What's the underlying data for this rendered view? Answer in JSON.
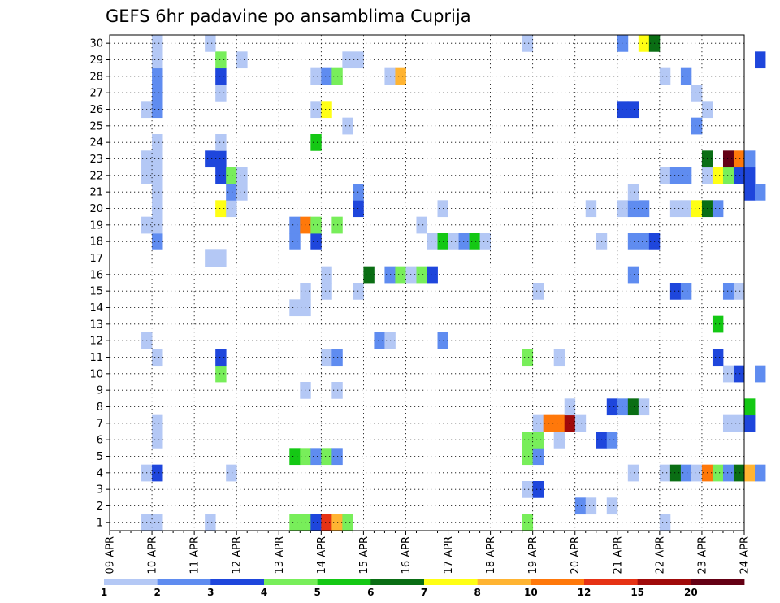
{
  "chart_data": {
    "type": "heatmap",
    "title": "GEFS 6hr padavine po ansamblima Cuprija",
    "x_tick_labels": [
      "09 APR",
      "10 APR",
      "11 APR",
      "12 APR",
      "13 APR",
      "14 APR",
      "15 APR",
      "16 APR",
      "17 APR",
      "18 APR",
      "19 APR",
      "20 APR",
      "21 APR",
      "22 APR",
      "23 APR",
      "24 APR"
    ],
    "y_tick_labels": [
      "1",
      "2",
      "3",
      "4",
      "5",
      "6",
      "7",
      "8",
      "9",
      "10",
      "11",
      "12",
      "13",
      "14",
      "15",
      "16",
      "17",
      "18",
      "19",
      "20",
      "21",
      "22",
      "23",
      "24",
      "25",
      "26",
      "27",
      "28",
      "29",
      "30"
    ],
    "time_step_hours": 6,
    "ylim": [
      0.5,
      30.5
    ],
    "grid": true,
    "colorbar": {
      "levels": [
        "1",
        "2",
        "3",
        "4",
        "5",
        "6",
        "7",
        "8",
        "10",
        "12",
        "15",
        "20"
      ],
      "colors": [
        "#b4c8f5",
        "#5f8cf0",
        "#1e46dc",
        "#78ee5a",
        "#14c814",
        "#0a6e14",
        "#ffff14",
        "#ffb432",
        "#ff780a",
        "#e63214",
        "#a00a0a",
        "#640014"
      ]
    },
    "cells": [
      {
        "m": 1,
        "s": [
          [
            3,
            "#b4c8f5"
          ],
          [
            4,
            "#b4c8f5"
          ],
          [
            9,
            "#b4c8f5"
          ],
          [
            17,
            "#78ee5a"
          ],
          [
            18,
            "#78ee5a"
          ],
          [
            19,
            "#1e46dc"
          ],
          [
            20,
            "#e63214"
          ],
          [
            21,
            "#ffb432"
          ],
          [
            22,
            "#78ee5a"
          ],
          [
            39,
            "#78ee5a"
          ],
          [
            52,
            "#b4c8f5"
          ]
        ]
      },
      {
        "m": 2,
        "s": [
          [
            44,
            "#5f8cf0"
          ],
          [
            45,
            "#b4c8f5"
          ],
          [
            47,
            "#b4c8f5"
          ]
        ]
      },
      {
        "m": 3,
        "s": [
          [
            39,
            "#b4c8f5"
          ],
          [
            40,
            "#1e46dc"
          ]
        ]
      },
      {
        "m": 4,
        "s": [
          [
            3,
            "#b4c8f5"
          ],
          [
            4,
            "#1e46dc"
          ],
          [
            11,
            "#b4c8f5"
          ],
          [
            49,
            "#b4c8f5"
          ],
          [
            52,
            "#b4c8f5"
          ],
          [
            53,
            "#0a6e14"
          ],
          [
            54,
            "#5f8cf0"
          ],
          [
            55,
            "#b4c8f5"
          ],
          [
            56,
            "#ff780a"
          ],
          [
            57,
            "#78ee5a"
          ],
          [
            58,
            "#5f8cf0"
          ],
          [
            59,
            "#0a6e14"
          ],
          [
            60,
            "#ffb432"
          ],
          [
            61,
            "#5f8cf0"
          ]
        ]
      },
      {
        "m": 5,
        "s": [
          [
            17,
            "#14c814"
          ],
          [
            18,
            "#78ee5a"
          ],
          [
            19,
            "#5f8cf0"
          ],
          [
            20,
            "#78ee5a"
          ],
          [
            21,
            "#5f8cf0"
          ],
          [
            39,
            "#78ee5a"
          ],
          [
            40,
            "#5f8cf0"
          ]
        ]
      },
      {
        "m": 6,
        "s": [
          [
            4,
            "#b4c8f5"
          ],
          [
            39,
            "#78ee5a"
          ],
          [
            40,
            "#78ee5a"
          ],
          [
            42,
            "#b4c8f5"
          ],
          [
            46,
            "#1e46dc"
          ],
          [
            47,
            "#5f8cf0"
          ]
        ]
      },
      {
        "m": 7,
        "s": [
          [
            4,
            "#b4c8f5"
          ],
          [
            40,
            "#b4c8f5"
          ],
          [
            41,
            "#ff780a"
          ],
          [
            42,
            "#ff780a"
          ],
          [
            43,
            "#a00a0a"
          ],
          [
            44,
            "#b4c8f5"
          ],
          [
            58,
            "#b4c8f5"
          ],
          [
            59,
            "#b4c8f5"
          ],
          [
            60,
            "#1e46dc"
          ]
        ]
      },
      {
        "m": 8,
        "s": [
          [
            43,
            "#b4c8f5"
          ],
          [
            47,
            "#1e46dc"
          ],
          [
            48,
            "#5f8cf0"
          ],
          [
            49,
            "#0a6e14"
          ],
          [
            50,
            "#b4c8f5"
          ],
          [
            60,
            "#14c814"
          ]
        ]
      },
      {
        "m": 9,
        "s": [
          [
            18,
            "#b4c8f5"
          ],
          [
            21,
            "#b4c8f5"
          ]
        ]
      },
      {
        "m": 10,
        "s": [
          [
            10,
            "#78ee5a"
          ],
          [
            58,
            "#b4c8f5"
          ],
          [
            59,
            "#1e46dc"
          ],
          [
            61,
            "#5f8cf0"
          ]
        ]
      },
      {
        "m": 11,
        "s": [
          [
            4,
            "#b4c8f5"
          ],
          [
            10,
            "#1e46dc"
          ],
          [
            20,
            "#b4c8f5"
          ],
          [
            21,
            "#5f8cf0"
          ],
          [
            39,
            "#78ee5a"
          ],
          [
            42,
            "#b4c8f5"
          ],
          [
            57,
            "#1e46dc"
          ]
        ]
      },
      {
        "m": 12,
        "s": [
          [
            3,
            "#b4c8f5"
          ],
          [
            25,
            "#5f8cf0"
          ],
          [
            26,
            "#b4c8f5"
          ],
          [
            31,
            "#5f8cf0"
          ]
        ]
      },
      {
        "m": 13,
        "s": [
          [
            57,
            "#14c814"
          ]
        ]
      },
      {
        "m": 14,
        "s": [
          [
            17,
            "#b4c8f5"
          ],
          [
            18,
            "#b4c8f5"
          ]
        ]
      },
      {
        "m": 15,
        "s": [
          [
            18,
            "#b4c8f5"
          ],
          [
            20,
            "#b4c8f5"
          ],
          [
            23,
            "#b4c8f5"
          ],
          [
            40,
            "#b4c8f5"
          ],
          [
            53,
            "#1e46dc"
          ],
          [
            54,
            "#5f8cf0"
          ],
          [
            58,
            "#5f8cf0"
          ],
          [
            59,
            "#b4c8f5"
          ]
        ]
      },
      {
        "m": 16,
        "s": [
          [
            20,
            "#b4c8f5"
          ],
          [
            24,
            "#0a6e14"
          ],
          [
            26,
            "#5f8cf0"
          ],
          [
            27,
            "#78ee5a"
          ],
          [
            28,
            "#b4c8f5"
          ],
          [
            29,
            "#78ee5a"
          ],
          [
            30,
            "#1e46dc"
          ],
          [
            49,
            "#5f8cf0"
          ]
        ]
      },
      {
        "m": 17,
        "s": [
          [
            9,
            "#b4c8f5"
          ],
          [
            10,
            "#b4c8f5"
          ]
        ]
      },
      {
        "m": 18,
        "s": [
          [
            4,
            "#5f8cf0"
          ],
          [
            17,
            "#5f8cf0"
          ],
          [
            19,
            "#1e46dc"
          ],
          [
            30,
            "#b4c8f5"
          ],
          [
            31,
            "#14c814"
          ],
          [
            32,
            "#b4c8f5"
          ],
          [
            33,
            "#5f8cf0"
          ],
          [
            34,
            "#14c814"
          ],
          [
            35,
            "#b4c8f5"
          ],
          [
            46,
            "#b4c8f5"
          ],
          [
            49,
            "#5f8cf0"
          ],
          [
            50,
            "#5f8cf0"
          ],
          [
            51,
            "#1e46dc"
          ]
        ]
      },
      {
        "m": 19,
        "s": [
          [
            3,
            "#b4c8f5"
          ],
          [
            4,
            "#b4c8f5"
          ],
          [
            17,
            "#5f8cf0"
          ],
          [
            18,
            "#ff780a"
          ],
          [
            19,
            "#78ee5a"
          ],
          [
            21,
            "#78ee5a"
          ],
          [
            29,
            "#b4c8f5"
          ]
        ]
      },
      {
        "m": 20,
        "s": [
          [
            4,
            "#b4c8f5"
          ],
          [
            10,
            "#ffff14"
          ],
          [
            11,
            "#b4c8f5"
          ],
          [
            23,
            "#1e46dc"
          ],
          [
            31,
            "#b4c8f5"
          ],
          [
            45,
            "#b4c8f5"
          ],
          [
            48,
            "#b4c8f5"
          ],
          [
            49,
            "#5f8cf0"
          ],
          [
            50,
            "#5f8cf0"
          ],
          [
            53,
            "#b4c8f5"
          ],
          [
            54,
            "#b4c8f5"
          ],
          [
            55,
            "#ffff14"
          ],
          [
            56,
            "#0a6e14"
          ],
          [
            57,
            "#5f8cf0"
          ]
        ]
      },
      {
        "m": 21,
        "s": [
          [
            4,
            "#b4c8f5"
          ],
          [
            11,
            "#5f8cf0"
          ],
          [
            12,
            "#b4c8f5"
          ],
          [
            23,
            "#5f8cf0"
          ],
          [
            49,
            "#b4c8f5"
          ],
          [
            60,
            "#1e46dc"
          ],
          [
            61,
            "#5f8cf0"
          ]
        ]
      },
      {
        "m": 22,
        "s": [
          [
            3,
            "#b4c8f5"
          ],
          [
            4,
            "#b4c8f5"
          ],
          [
            10,
            "#1e46dc"
          ],
          [
            11,
            "#78ee5a"
          ],
          [
            12,
            "#b4c8f5"
          ],
          [
            52,
            "#b4c8f5"
          ],
          [
            53,
            "#5f8cf0"
          ],
          [
            54,
            "#5f8cf0"
          ],
          [
            56,
            "#b4c8f5"
          ],
          [
            57,
            "#ffff14"
          ],
          [
            58,
            "#78ee5a"
          ],
          [
            59,
            "#1e46dc"
          ],
          [
            60,
            "#1e46dc"
          ]
        ]
      },
      {
        "m": 23,
        "s": [
          [
            3,
            "#b4c8f5"
          ],
          [
            4,
            "#b4c8f5"
          ],
          [
            9,
            "#1e46dc"
          ],
          [
            10,
            "#1e46dc"
          ],
          [
            56,
            "#0a6e14"
          ],
          [
            58,
            "#640014"
          ],
          [
            59,
            "#ff780a"
          ],
          [
            60,
            "#5f8cf0"
          ]
        ]
      },
      {
        "m": 24,
        "s": [
          [
            4,
            "#b4c8f5"
          ],
          [
            10,
            "#b4c8f5"
          ],
          [
            19,
            "#14c814"
          ]
        ]
      },
      {
        "m": 25,
        "s": [
          [
            22,
            "#b4c8f5"
          ],
          [
            55,
            "#5f8cf0"
          ]
        ]
      },
      {
        "m": 26,
        "s": [
          [
            3,
            "#b4c8f5"
          ],
          [
            4,
            "#5f8cf0"
          ],
          [
            19,
            "#b4c8f5"
          ],
          [
            20,
            "#ffff14"
          ],
          [
            48,
            "#1e46dc"
          ],
          [
            49,
            "#1e46dc"
          ],
          [
            56,
            "#b4c8f5"
          ]
        ]
      },
      {
        "m": 27,
        "s": [
          [
            4,
            "#5f8cf0"
          ],
          [
            10,
            "#b4c8f5"
          ],
          [
            55,
            "#b4c8f5"
          ]
        ]
      },
      {
        "m": 28,
        "s": [
          [
            4,
            "#5f8cf0"
          ],
          [
            10,
            "#1e46dc"
          ],
          [
            19,
            "#b4c8f5"
          ],
          [
            20,
            "#5f8cf0"
          ],
          [
            21,
            "#78ee5a"
          ],
          [
            26,
            "#b4c8f5"
          ],
          [
            27,
            "#ffb432"
          ],
          [
            52,
            "#b4c8f5"
          ],
          [
            54,
            "#5f8cf0"
          ]
        ]
      },
      {
        "m": 29,
        "s": [
          [
            4,
            "#b4c8f5"
          ],
          [
            10,
            "#78ee5a"
          ],
          [
            12,
            "#b4c8f5"
          ],
          [
            22,
            "#b4c8f5"
          ],
          [
            23,
            "#b4c8f5"
          ],
          [
            61,
            "#1e46dc"
          ]
        ]
      },
      {
        "m": 30,
        "s": [
          [
            4,
            "#b4c8f5"
          ],
          [
            9,
            "#b4c8f5"
          ],
          [
            39,
            "#b4c8f5"
          ],
          [
            48,
            "#5f8cf0"
          ],
          [
            50,
            "#ffff14"
          ],
          [
            51,
            "#0a6e14"
          ]
        ]
      }
    ]
  }
}
